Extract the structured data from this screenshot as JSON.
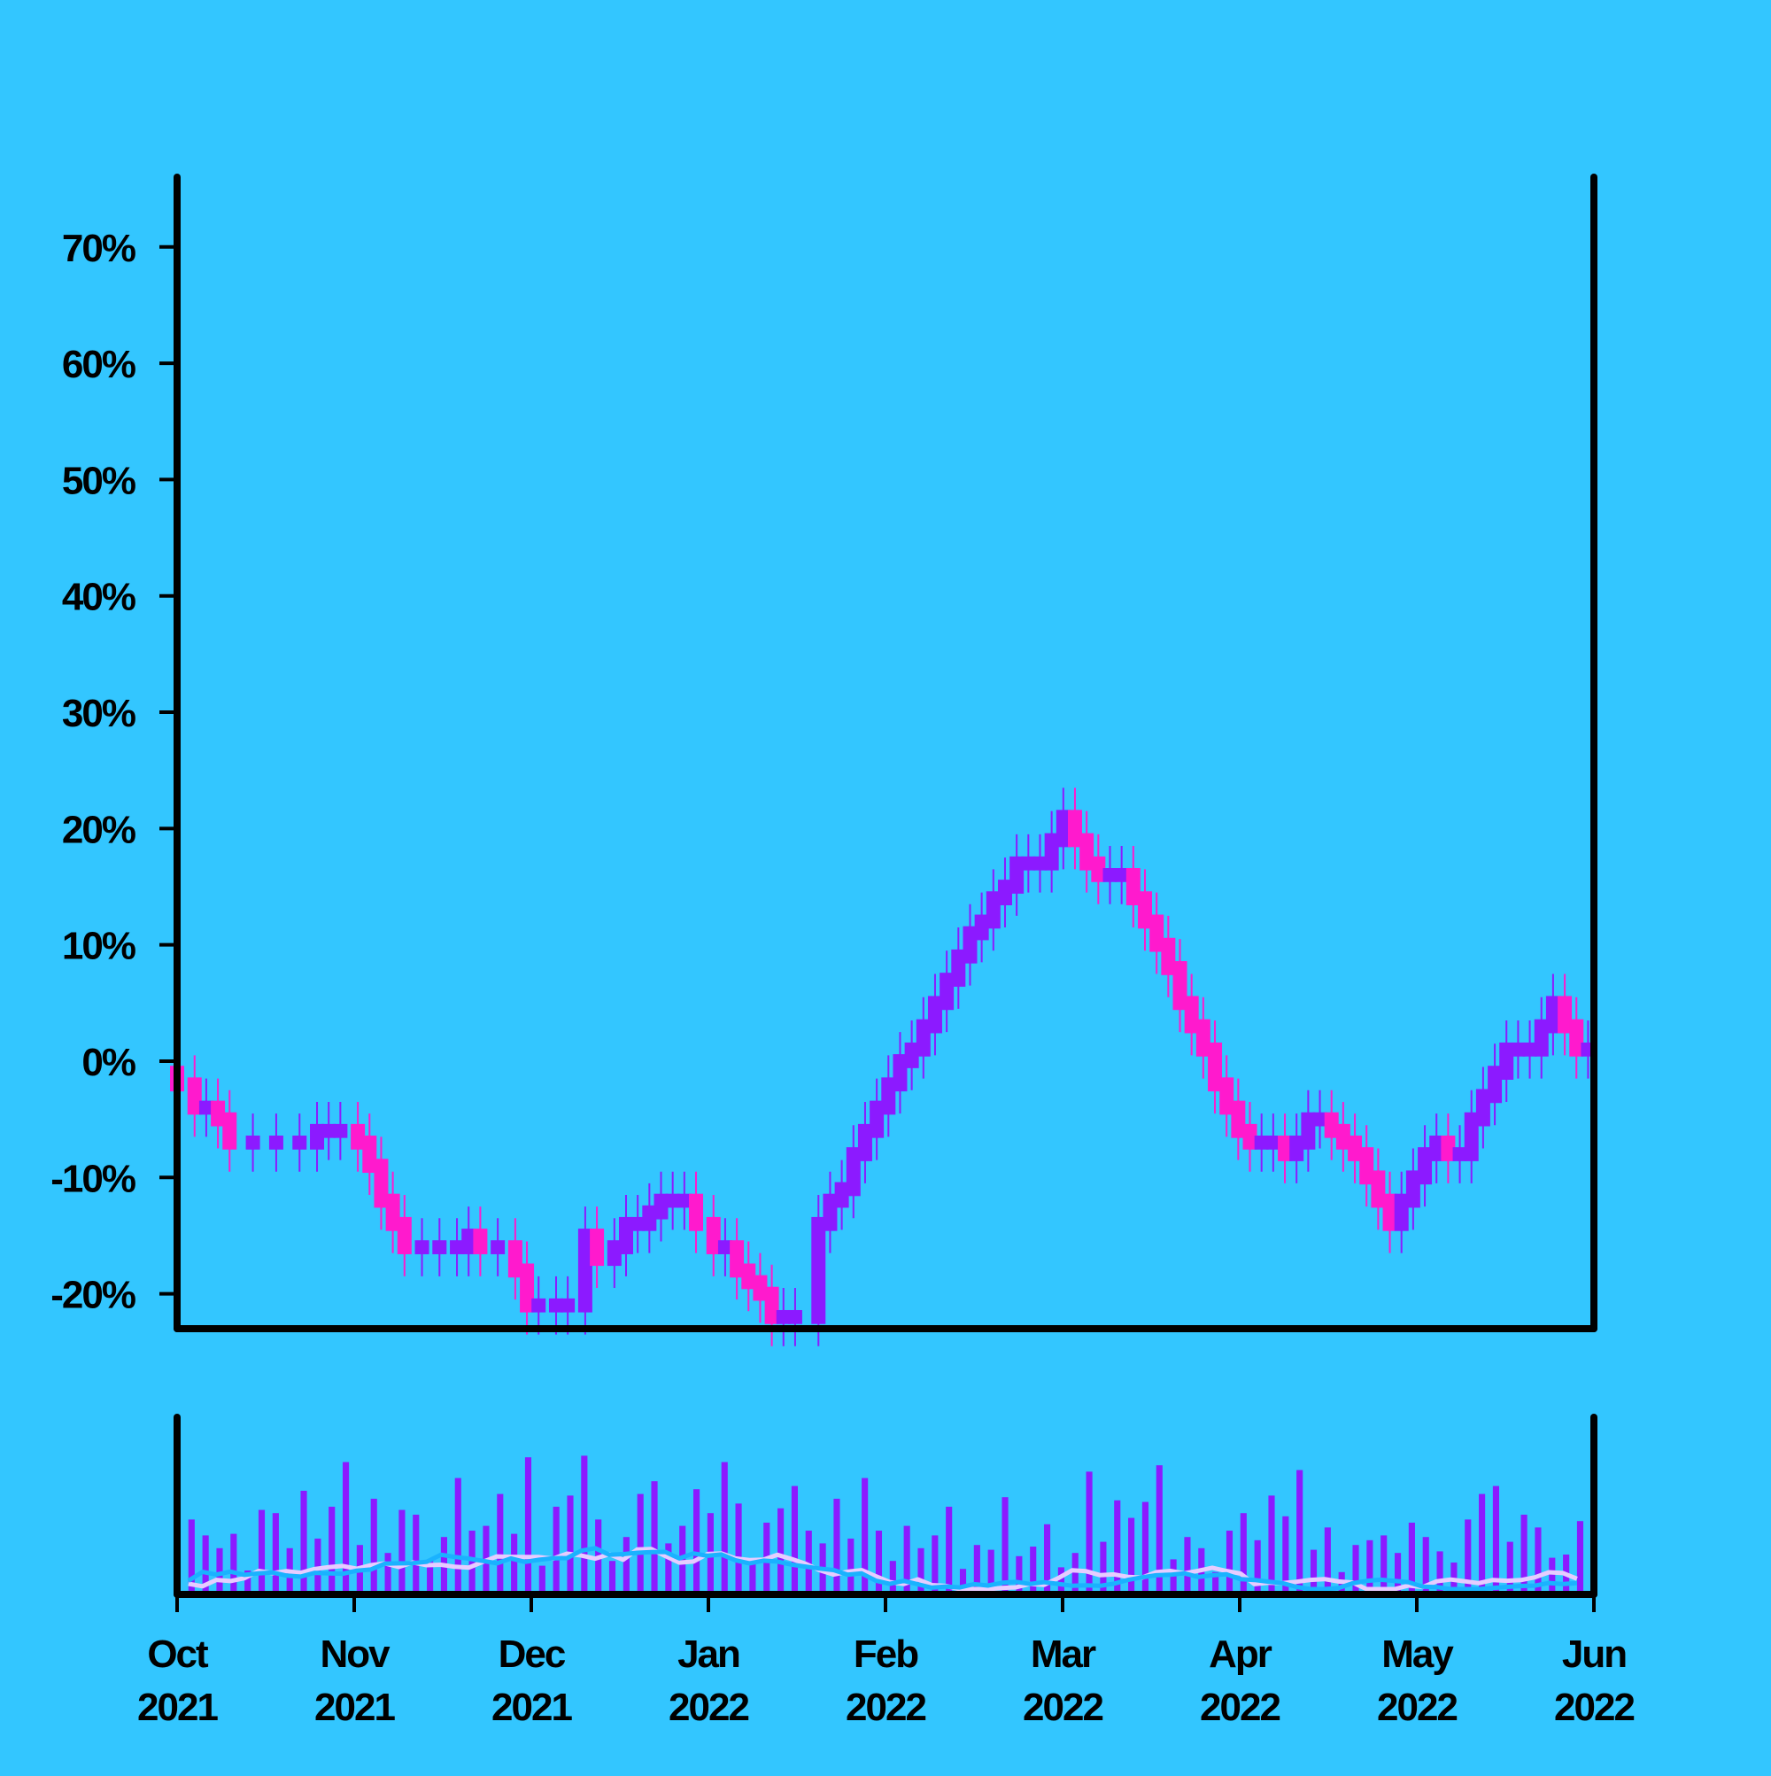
{
  "chart_data": [
    {
      "type": "candlestick",
      "title": "",
      "xlabel": "",
      "ylabel": "",
      "ylim": [
        -23,
        76
      ],
      "y_ticks": [
        "-20%",
        "-10%",
        "0%",
        "10%",
        "20%",
        "30%",
        "40%",
        "50%",
        "60%",
        "70%"
      ],
      "y_tick_values": [
        -20,
        -10,
        0,
        10,
        20,
        30,
        40,
        50,
        60,
        70
      ],
      "xlim": [
        "2021-10-01",
        "2022-06-01"
      ],
      "grid": false,
      "legend": "none",
      "colors": {
        "up": "#8c1aff",
        "down": "#ff1acd",
        "background": "#33c6ff",
        "axis": "#000000"
      },
      "series": [
        {
          "values": [
            [
              "2021-10-01",
              -2
            ],
            [
              "2021-10-04",
              -4
            ],
            [
              "2021-10-06",
              -4
            ],
            [
              "2021-10-08",
              -5
            ],
            [
              "2021-10-10",
              -7
            ],
            [
              "2021-10-14",
              -7
            ],
            [
              "2021-10-18",
              -7
            ],
            [
              "2021-10-22",
              -7
            ],
            [
              "2021-10-25",
              -6
            ],
            [
              "2021-10-27",
              -6
            ],
            [
              "2021-10-29",
              -6
            ],
            [
              "2021-11-01",
              -7
            ],
            [
              "2021-11-03",
              -9
            ],
            [
              "2021-11-05",
              -12
            ],
            [
              "2021-11-07",
              -14
            ],
            [
              "2021-11-09",
              -16
            ],
            [
              "2021-11-12",
              -16
            ],
            [
              "2021-11-15",
              -16
            ],
            [
              "2021-11-18",
              -16
            ],
            [
              "2021-11-20",
              -15
            ],
            [
              "2021-11-22",
              -16
            ],
            [
              "2021-11-25",
              -16
            ],
            [
              "2021-11-28",
              -18
            ],
            [
              "2021-11-30",
              -21
            ],
            [
              "2021-12-02",
              -21
            ],
            [
              "2021-12-05",
              -21
            ],
            [
              "2021-12-07",
              -21
            ],
            [
              "2021-12-10",
              -15
            ],
            [
              "2021-12-12",
              -17
            ],
            [
              "2021-12-15",
              -16
            ],
            [
              "2021-12-17",
              -14
            ],
            [
              "2021-12-19",
              -14
            ],
            [
              "2021-12-21",
              -13
            ],
            [
              "2021-12-23",
              -12
            ],
            [
              "2021-12-25",
              -12
            ],
            [
              "2021-12-27",
              -12
            ],
            [
              "2021-12-29",
              -14
            ],
            [
              "2022-01-01",
              -16
            ],
            [
              "2022-01-03",
              -16
            ],
            [
              "2022-01-05",
              -18
            ],
            [
              "2022-01-07",
              -19
            ],
            [
              "2022-01-09",
              -20
            ],
            [
              "2022-01-11",
              -22
            ],
            [
              "2022-01-13",
              -22
            ],
            [
              "2022-01-15",
              -22
            ],
            [
              "2022-01-19",
              -14
            ],
            [
              "2022-01-21",
              -12
            ],
            [
              "2022-01-23",
              -11
            ],
            [
              "2022-01-25",
              -8
            ],
            [
              "2022-01-27",
              -6
            ],
            [
              "2022-01-29",
              -4
            ],
            [
              "2022-01-31",
              -2
            ],
            [
              "2022-02-02",
              0
            ],
            [
              "2022-02-04",
              1
            ],
            [
              "2022-02-06",
              3
            ],
            [
              "2022-02-08",
              5
            ],
            [
              "2022-02-10",
              7
            ],
            [
              "2022-02-12",
              9
            ],
            [
              "2022-02-14",
              11
            ],
            [
              "2022-02-16",
              12
            ],
            [
              "2022-02-18",
              14
            ],
            [
              "2022-02-20",
              15
            ],
            [
              "2022-02-22",
              17
            ],
            [
              "2022-02-24",
              17
            ],
            [
              "2022-02-26",
              17
            ],
            [
              "2022-02-28",
              19
            ],
            [
              "2022-03-02",
              21
            ],
            [
              "2022-03-04",
              19
            ],
            [
              "2022-03-06",
              17
            ],
            [
              "2022-03-08",
              16
            ],
            [
              "2022-03-10",
              16
            ],
            [
              "2022-03-12",
              16
            ],
            [
              "2022-03-14",
              14
            ],
            [
              "2022-03-16",
              12
            ],
            [
              "2022-03-18",
              10
            ],
            [
              "2022-03-20",
              8
            ],
            [
              "2022-03-22",
              5
            ],
            [
              "2022-03-24",
              3
            ],
            [
              "2022-03-26",
              1
            ],
            [
              "2022-03-28",
              -2
            ],
            [
              "2022-03-30",
              -4
            ],
            [
              "2022-04-01",
              -6
            ],
            [
              "2022-04-03",
              -7
            ],
            [
              "2022-04-05",
              -7
            ],
            [
              "2022-04-07",
              -7
            ],
            [
              "2022-04-09",
              -8
            ],
            [
              "2022-04-11",
              -7
            ],
            [
              "2022-04-13",
              -5
            ],
            [
              "2022-04-15",
              -5
            ],
            [
              "2022-04-17",
              -6
            ],
            [
              "2022-04-19",
              -7
            ],
            [
              "2022-04-21",
              -8
            ],
            [
              "2022-04-23",
              -10
            ],
            [
              "2022-04-25",
              -12
            ],
            [
              "2022-04-27",
              -14
            ],
            [
              "2022-04-29",
              -12
            ],
            [
              "2022-05-01",
              -10
            ],
            [
              "2022-05-03",
              -8
            ],
            [
              "2022-05-05",
              -7
            ],
            [
              "2022-05-07",
              -8
            ],
            [
              "2022-05-09",
              -8
            ],
            [
              "2022-05-11",
              -5
            ],
            [
              "2022-05-13",
              -3
            ],
            [
              "2022-05-15",
              -1
            ],
            [
              "2022-05-17",
              1
            ],
            [
              "2022-05-19",
              1
            ],
            [
              "2022-05-21",
              1
            ],
            [
              "2022-05-23",
              3
            ],
            [
              "2022-05-25",
              5
            ],
            [
              "2022-05-27",
              3
            ],
            [
              "2022-05-29",
              1
            ],
            [
              "2022-05-31",
              1
            ]
          ]
        }
      ]
    },
    {
      "type": "bar",
      "title": "",
      "xlabel": "",
      "ylabel": "",
      "x_ticks": [
        "Oct\n2021",
        "Nov\n2021",
        "Dec\n2021",
        "Jan\n2022",
        "Feb\n2022",
        "Mar\n2022",
        "Apr\n2022",
        "May\n2022",
        "Jun\n2022"
      ],
      "x_tick_lines": [
        [
          "Oct",
          "2021"
        ],
        [
          "Nov",
          "2021"
        ],
        [
          "Dec",
          "2021"
        ],
        [
          "Jan",
          "2022"
        ],
        [
          "Feb",
          "2022"
        ],
        [
          "Mar",
          "2022"
        ],
        [
          "Apr",
          "2022"
        ],
        [
          "May",
          "2022"
        ],
        [
          "Jun",
          "2022"
        ]
      ],
      "grid": false,
      "legend": "none",
      "colors": {
        "bars": "#8c1aff",
        "line_1": "#e6ccff",
        "line_2": "#1ab2ff"
      },
      "y_axis_labels": "none",
      "values": [
        0.47,
        0.37,
        0.29,
        0.38,
        0.15,
        0.53,
        0.51,
        0.29,
        0.65,
        0.35,
        0.55,
        0.83,
        0.31,
        0.6,
        0.26,
        0.53,
        0.5,
        0.22,
        0.36,
        0.73,
        0.4,
        0.43,
        0.63,
        0.38,
        0.86,
        0.18,
        0.55,
        0.62,
        0.87,
        0.47,
        0.21,
        0.36,
        0.63,
        0.71,
        0.32,
        0.43,
        0.66,
        0.51,
        0.83,
        0.57,
        0.19,
        0.45,
        0.54,
        0.68,
        0.4,
        0.32,
        0.6,
        0.35,
        0.73,
        0.4,
        0.21,
        0.43,
        0.29,
        0.37,
        0.55,
        0.16,
        0.31,
        0.28,
        0.61,
        0.24,
        0.3,
        0.44,
        0.17,
        0.26,
        0.77,
        0.33,
        0.59,
        0.48,
        0.58,
        0.81,
        0.22,
        0.36,
        0.29,
        0.14,
        0.4,
        0.51,
        0.34,
        0.62,
        0.49,
        0.78,
        0.28,
        0.42,
        0.14,
        0.31,
        0.34,
        0.37,
        0.26,
        0.45,
        0.36,
        0.27,
        0.2,
        0.47,
        0.63,
        0.68,
        0.33,
        0.5,
        0.42,
        0.23,
        0.25,
        0.46
      ]
    }
  ]
}
